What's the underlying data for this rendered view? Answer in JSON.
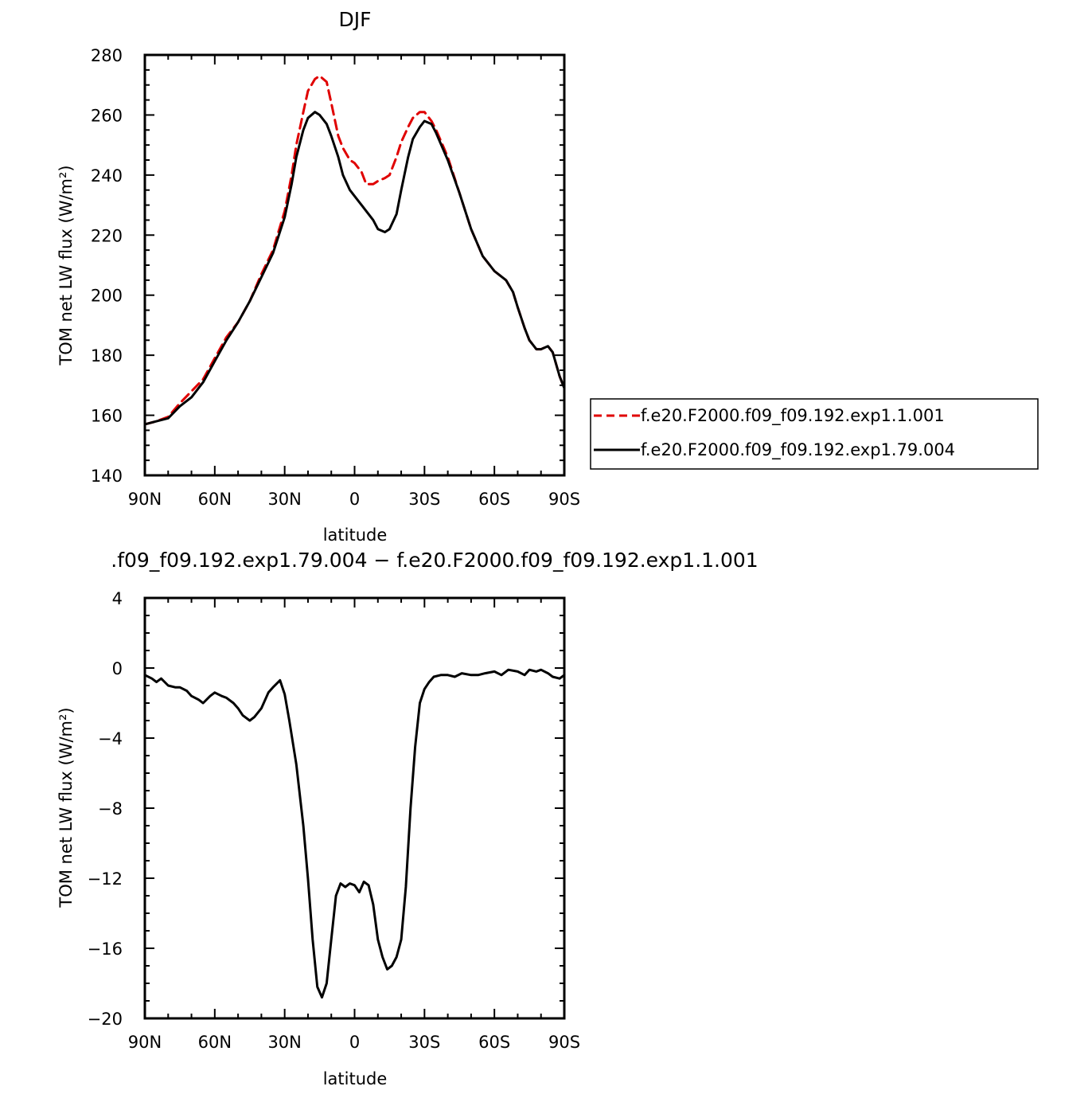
{
  "colors": {
    "series_red": "#e00000",
    "series_black": "#000000",
    "axes": "#000000"
  },
  "chart_data": [
    {
      "type": "line",
      "title": "DJF",
      "xlabel": "latitude",
      "ylabel": "TOM net LW flux (W/m²)",
      "xlim": [
        -90,
        90
      ],
      "ylim": [
        140,
        280
      ],
      "x_ticks": [
        {
          "value": -90,
          "label": "90N"
        },
        {
          "value": -60,
          "label": "60N"
        },
        {
          "value": -30,
          "label": "30N"
        },
        {
          "value": 0,
          "label": "0"
        },
        {
          "value": 30,
          "label": "30S"
        },
        {
          "value": 60,
          "label": "60S"
        },
        {
          "value": 90,
          "label": "90S"
        }
      ],
      "y_ticks": [
        {
          "value": 140,
          "label": "140"
        },
        {
          "value": 160,
          "label": "160"
        },
        {
          "value": 180,
          "label": "180"
        },
        {
          "value": 200,
          "label": "200"
        },
        {
          "value": 220,
          "label": "220"
        },
        {
          "value": 240,
          "label": "240"
        },
        {
          "value": 260,
          "label": "260"
        },
        {
          "value": 280,
          "label": "280"
        }
      ],
      "legend_position": "right",
      "series": [
        {
          "name": "f.e20.F2000.f09_f09.192.exp1.1.001",
          "style": "dashed",
          "color": "#e00000",
          "x": [
            -90,
            -85,
            -80,
            -75,
            -70,
            -65,
            -60,
            -55,
            -50,
            -45,
            -40,
            -35,
            -30,
            -27,
            -25,
            -22,
            -20,
            -17,
            -15,
            -12,
            -10,
            -7,
            -5,
            -2,
            0,
            3,
            5,
            8,
            10,
            13,
            15,
            18,
            20,
            23,
            25,
            28,
            30,
            33,
            35,
            40,
            45,
            50,
            55,
            60,
            65,
            68,
            70,
            73,
            75,
            78,
            80,
            83,
            85,
            88,
            90
          ],
          "y": [
            157,
            158,
            159.5,
            164,
            168,
            172,
            179,
            186,
            191,
            198,
            207,
            215,
            228,
            240,
            250,
            261,
            268,
            272,
            273,
            271,
            264,
            253,
            249,
            245,
            244,
            241,
            237,
            237,
            238,
            239,
            240,
            246,
            251,
            256,
            259,
            261,
            261,
            258,
            255,
            246,
            234,
            222,
            213,
            208,
            205,
            201,
            196,
            189,
            185,
            182,
            182,
            183,
            181,
            173,
            169
          ]
        },
        {
          "name": "f.e20.F2000.f09_f09.192.exp1.79.004",
          "style": "solid",
          "color": "#000000",
          "x": [
            -90,
            -85,
            -80,
            -75,
            -70,
            -65,
            -60,
            -55,
            -50,
            -45,
            -40,
            -35,
            -30,
            -27,
            -25,
            -22,
            -20,
            -17,
            -15,
            -12,
            -10,
            -7,
            -5,
            -2,
            0,
            3,
            5,
            8,
            10,
            13,
            15,
            18,
            20,
            23,
            25,
            28,
            30,
            33,
            35,
            40,
            45,
            50,
            55,
            60,
            65,
            68,
            70,
            73,
            75,
            78,
            80,
            83,
            85,
            88,
            90
          ],
          "y": [
            157,
            158,
            159,
            163,
            166,
            171,
            178,
            185,
            191,
            198,
            206,
            214,
            226,
            237,
            246,
            255,
            259,
            261,
            260,
            257,
            253,
            246,
            240,
            235,
            233,
            230,
            228,
            225,
            222,
            221,
            222,
            227,
            235,
            246,
            252,
            256,
            258,
            257,
            254,
            245,
            234,
            222,
            213,
            208,
            205,
            201,
            196,
            189,
            185,
            182,
            182,
            183,
            181,
            173,
            169
          ]
        }
      ]
    },
    {
      "type": "line",
      "title": ".f09_f09.192.exp1.79.004 − f.e20.F2000.f09_f09.192.exp1.1.001",
      "xlabel": "latitude",
      "ylabel": "TOM net LW flux (W/m²)",
      "xlim": [
        -90,
        90
      ],
      "ylim": [
        -20,
        4
      ],
      "x_ticks": [
        {
          "value": -90,
          "label": "90N"
        },
        {
          "value": -60,
          "label": "60N"
        },
        {
          "value": -30,
          "label": "30N"
        },
        {
          "value": 0,
          "label": "0"
        },
        {
          "value": 30,
          "label": "30S"
        },
        {
          "value": 60,
          "label": "60S"
        },
        {
          "value": 90,
          "label": "90S"
        }
      ],
      "y_ticks": [
        {
          "value": -20,
          "label": "−20"
        },
        {
          "value": -16,
          "label": "−16"
        },
        {
          "value": -12,
          "label": "−12"
        },
        {
          "value": -8,
          "label": "−8"
        },
        {
          "value": -4,
          "label": "−4"
        },
        {
          "value": 0,
          "label": "0"
        },
        {
          "value": 4,
          "label": "4"
        }
      ],
      "series": [
        {
          "style": "solid",
          "color": "#000000",
          "x": [
            -90,
            -87,
            -85,
            -83,
            -80,
            -77,
            -75,
            -72,
            -70,
            -67,
            -65,
            -62,
            -60,
            -57,
            -55,
            -52,
            -50,
            -48,
            -45,
            -43,
            -40,
            -37,
            -35,
            -32,
            -30,
            -28,
            -25,
            -22,
            -20,
            -18,
            -16,
            -14,
            -12,
            -10,
            -8,
            -6,
            -4,
            -2,
            0,
            2,
            4,
            6,
            8,
            10,
            12,
            14,
            16,
            18,
            20,
            22,
            24,
            26,
            28,
            30,
            32,
            34,
            37,
            40,
            43,
            46,
            50,
            53,
            56,
            60,
            63,
            66,
            70,
            73,
            75,
            78,
            80,
            83,
            85,
            88,
            90
          ],
          "y": [
            -0.4,
            -0.6,
            -0.8,
            -0.6,
            -1.0,
            -1.1,
            -1.1,
            -1.3,
            -1.6,
            -1.8,
            -2.0,
            -1.6,
            -1.4,
            -1.6,
            -1.7,
            -2.0,
            -2.3,
            -2.7,
            -3.0,
            -2.8,
            -2.3,
            -1.4,
            -1.1,
            -0.7,
            -1.5,
            -3.0,
            -5.5,
            -9.0,
            -12.0,
            -15.5,
            -18.2,
            -18.8,
            -18.0,
            -15.5,
            -13.0,
            -12.3,
            -12.5,
            -12.3,
            -12.4,
            -12.8,
            -12.2,
            -12.4,
            -13.5,
            -15.5,
            -16.5,
            -17.2,
            -17.0,
            -16.5,
            -15.5,
            -12.5,
            -8.0,
            -4.5,
            -2.0,
            -1.2,
            -0.8,
            -0.5,
            -0.4,
            -0.4,
            -0.5,
            -0.3,
            -0.4,
            -0.4,
            -0.3,
            -0.2,
            -0.4,
            -0.1,
            -0.2,
            -0.4,
            -0.1,
            -0.2,
            -0.1,
            -0.3,
            -0.5,
            -0.6,
            -0.4
          ]
        }
      ]
    }
  ]
}
